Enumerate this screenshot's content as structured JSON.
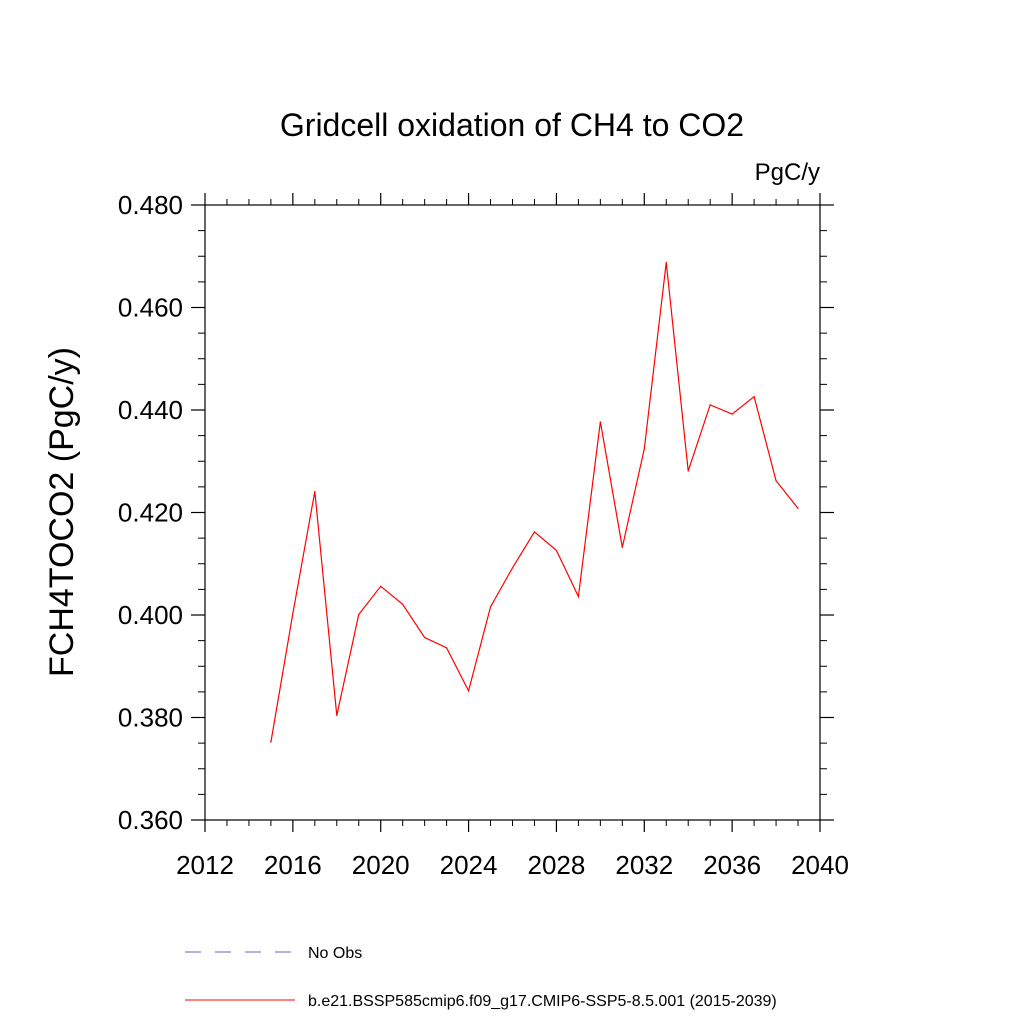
{
  "chart_data": {
    "type": "line",
    "title": "Gridcell oxidation of CH4 to CO2",
    "units_label": "PgC/y",
    "ylabel": "FCH4TOCO2  (PgC/y)",
    "xlabel": "",
    "xlim": [
      2012,
      2040
    ],
    "ylim": [
      0.36,
      0.48
    ],
    "x_ticks": [
      2012,
      2016,
      2020,
      2024,
      2028,
      2032,
      2036,
      2040
    ],
    "x_tick_labels": [
      "2012",
      "2016",
      "2020",
      "2024",
      "2028",
      "2032",
      "2036",
      "2040"
    ],
    "y_ticks": [
      0.36,
      0.38,
      0.4,
      0.42,
      0.44,
      0.46,
      0.48
    ],
    "y_tick_labels": [
      "0.360",
      "0.380",
      "0.400",
      "0.420",
      "0.440",
      "0.460",
      "0.480"
    ],
    "grid": false,
    "legend_position": "bottom",
    "series": [
      {
        "name": "b.e21.BSSP585cmip6.f09_g17.CMIP6-SSP5-8.5.001 (2015-2039)",
        "color": "#ff0000",
        "dash": "solid",
        "x": [
          2015,
          2016,
          2017,
          2018,
          2019,
          2020,
          2021,
          2022,
          2023,
          2024,
          2025,
          2026,
          2027,
          2028,
          2029,
          2030,
          2031,
          2032,
          2033,
          2034,
          2035,
          2036,
          2037,
          2038,
          2039
        ],
        "y": [
          0.3752,
          0.4003,
          0.4241,
          0.3804,
          0.4001,
          0.4056,
          0.4021,
          0.3956,
          0.3936,
          0.3852,
          0.4016,
          0.4092,
          0.4162,
          0.4126,
          0.4036,
          0.4377,
          0.4132,
          0.4324,
          0.4688,
          0.4281,
          0.441,
          0.4392,
          0.4426,
          0.4262,
          0.4208
        ]
      },
      {
        "name": "No Obs",
        "color": "#6666cc",
        "dash": "dashed",
        "x": [],
        "y": []
      }
    ]
  }
}
